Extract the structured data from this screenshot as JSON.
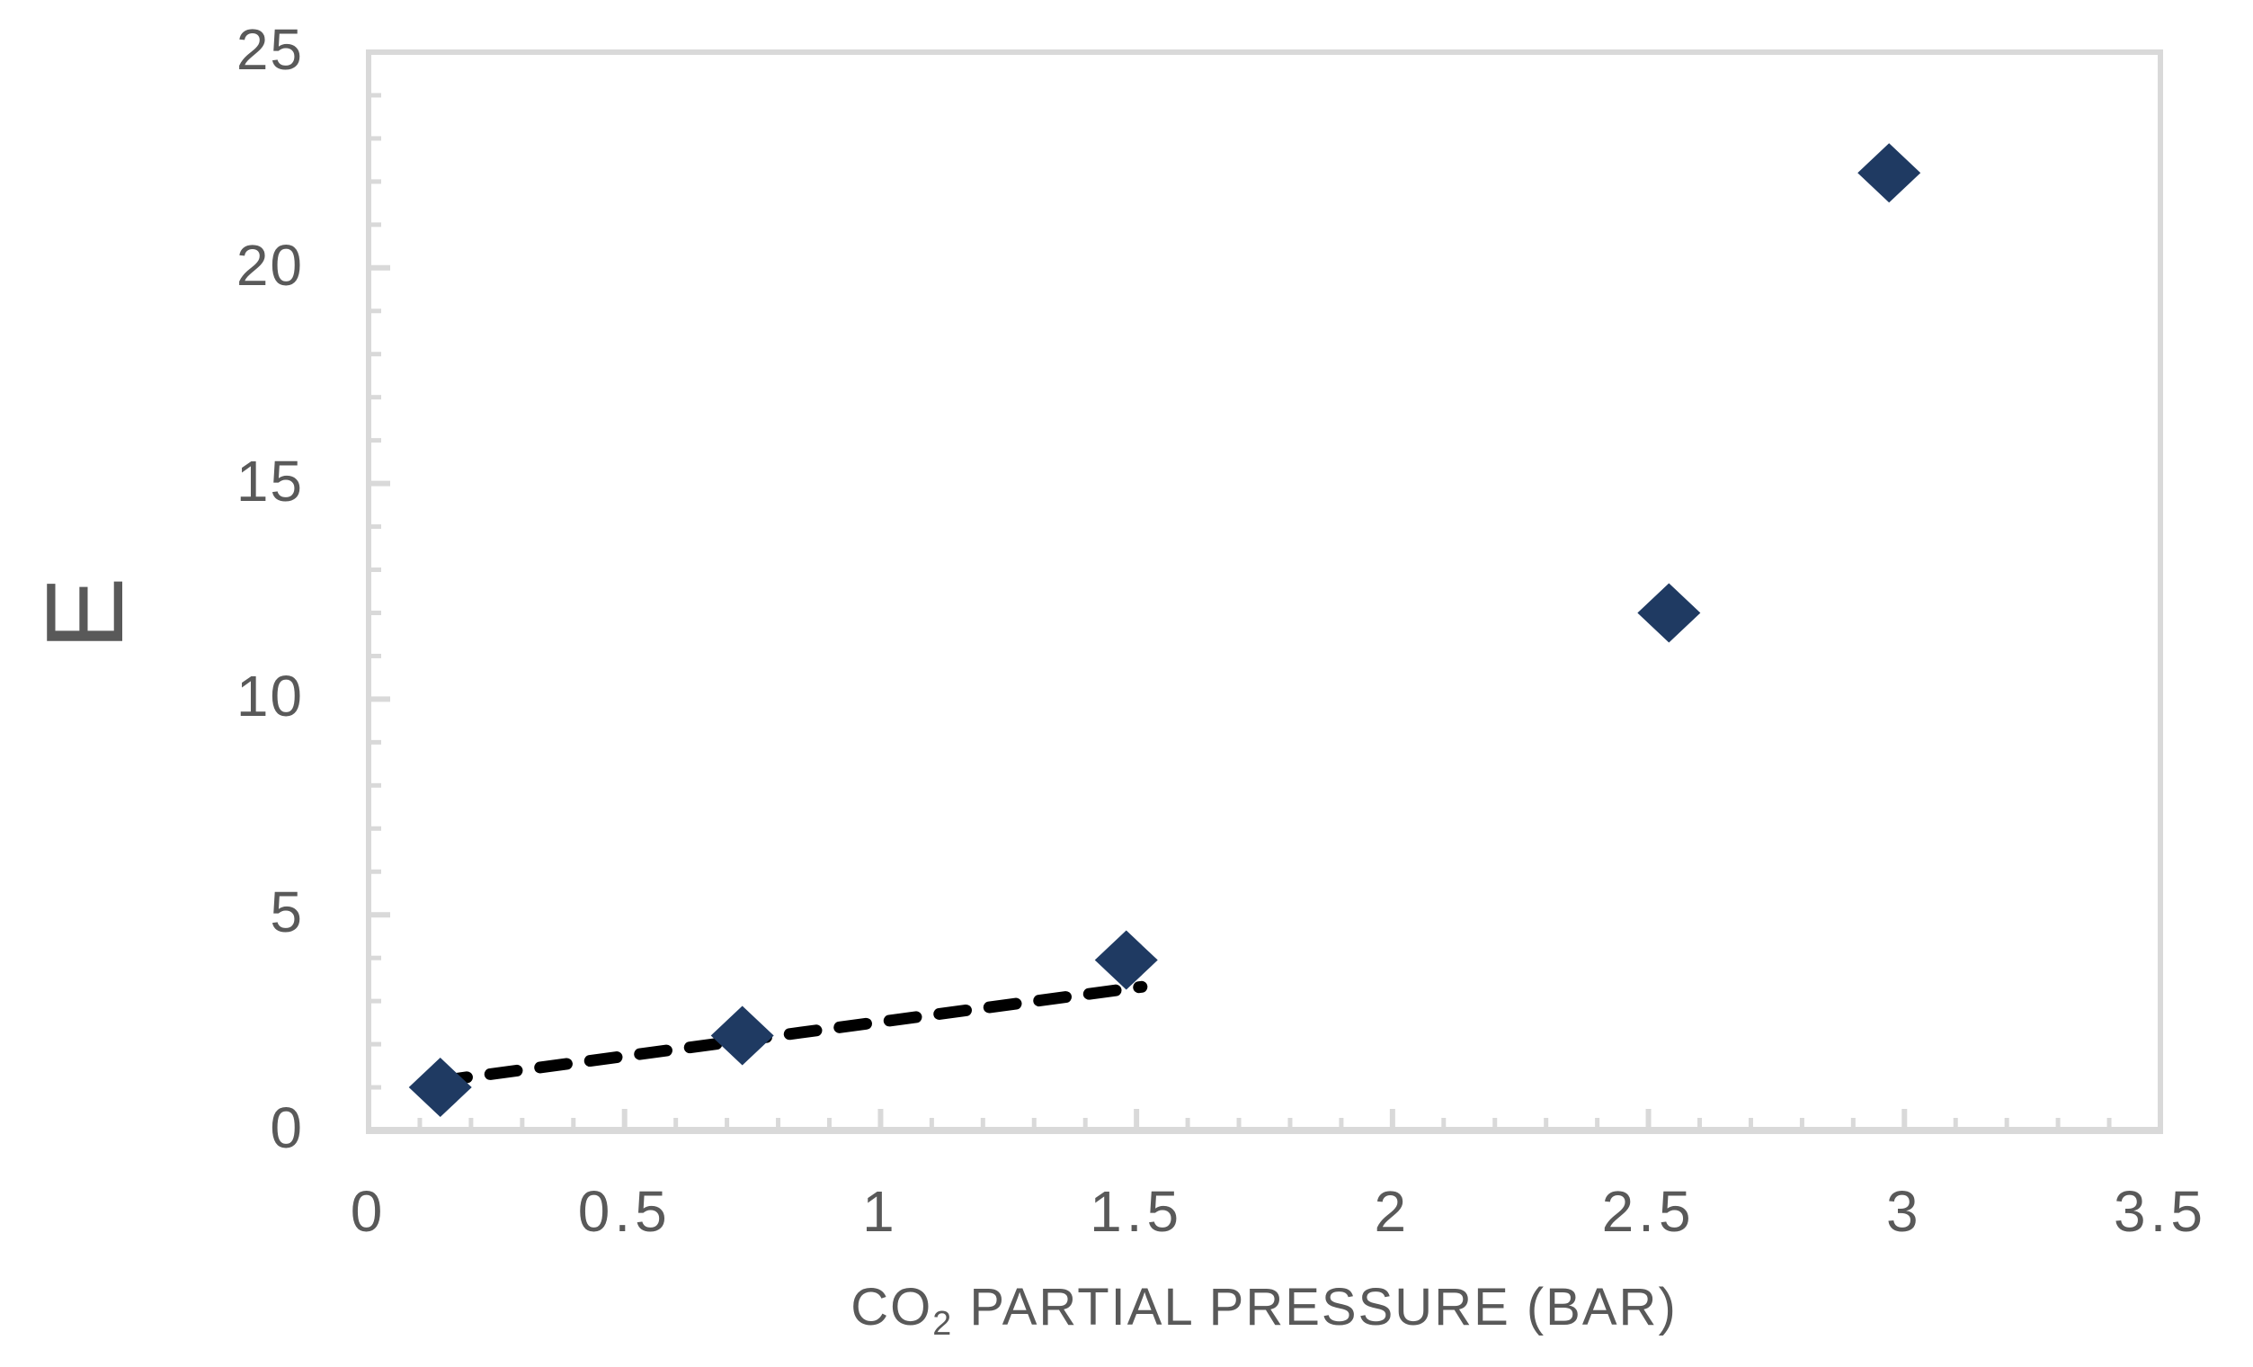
{
  "chart_data": {
    "type": "scatter",
    "title": "",
    "ylabel": "E",
    "xlabel": "CO2 PARTIAL PRESSURE (BAR)",
    "xlabel_parts": {
      "prefix": "CO",
      "subscript": "2",
      "suffix": " PARTIAL PRESSURE (BAR)"
    },
    "xlim": [
      0,
      3.5
    ],
    "ylim": [
      0,
      25
    ],
    "x_tick_values": [
      0,
      0.5,
      1,
      1.5,
      2,
      2.5,
      3,
      3.5
    ],
    "x_tick_labels": [
      "0",
      "0.5",
      "1",
      "1.5",
      "2",
      "2.5",
      "3",
      "3.5"
    ],
    "y_tick_values": [
      0,
      5,
      10,
      15,
      20,
      25
    ],
    "y_tick_labels": [
      "0",
      "5",
      "10",
      "15",
      "20",
      "25"
    ],
    "x_minor_tick_step": 0.1,
    "y_minor_tick_step": 1,
    "grid": "off",
    "legend": "none",
    "marker": "diamond",
    "points": [
      {
        "x": 0.14,
        "y": 1.0
      },
      {
        "x": 0.73,
        "y": 2.2
      },
      {
        "x": 1.48,
        "y": 3.95
      },
      {
        "x": 2.54,
        "y": 12.0
      },
      {
        "x": 2.97,
        "y": 22.2
      }
    ],
    "trendline": {
      "style": "dashed",
      "x1": 0.14,
      "y1": 1.15,
      "x2": 1.51,
      "y2": 3.33
    },
    "colors": {
      "marker": "#1F3A62",
      "axis": "#D9D9D9",
      "tick_labels": "#595959",
      "axis_titles": "#595959",
      "trendline": "#000000",
      "background": "#FFFFFF"
    }
  }
}
